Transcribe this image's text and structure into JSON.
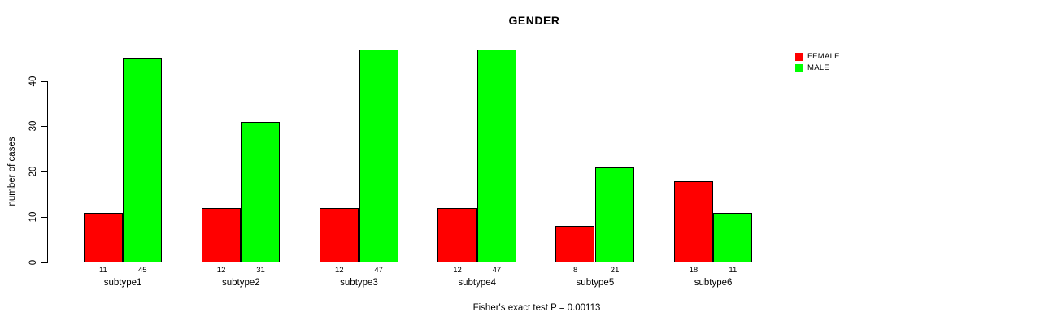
{
  "chart_data": {
    "type": "bar",
    "title": "GENDER",
    "ylabel": "number of cases",
    "xlabel": "",
    "categories": [
      "subtype1",
      "subtype2",
      "subtype3",
      "subtype4",
      "subtype5",
      "subtype6"
    ],
    "series": [
      {
        "name": "FEMALE",
        "color": "#ff0000",
        "values": [
          11,
          12,
          12,
          12,
          8,
          18
        ]
      },
      {
        "name": "MALE",
        "color": "#00ff00",
        "values": [
          45,
          31,
          47,
          47,
          21,
          11
        ]
      }
    ],
    "yticks": [
      0,
      10,
      20,
      30,
      40
    ],
    "ylim": [
      0,
      47.5
    ],
    "grid": false,
    "legend_position": "top-right",
    "bar_value_labels": true,
    "annotation": "Fisher's exact test P = 0.00113"
  }
}
